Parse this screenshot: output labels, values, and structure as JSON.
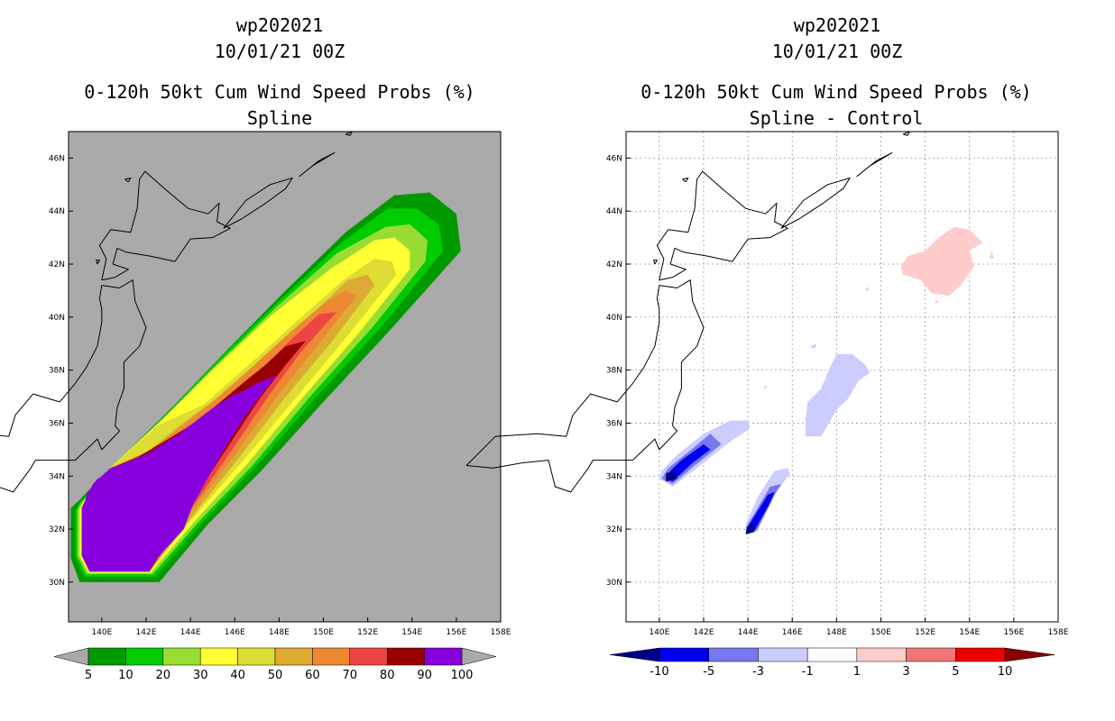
{
  "chart_data": [
    {
      "type": "heatmap",
      "title_line1": "wp202021",
      "title_line2": "10/01/21 00Z",
      "title_line3": "0-120h 50kt Cum Wind Speed Probs (%)",
      "subtitle": "Spline",
      "x_ticks": [
        "140E",
        "142E",
        "144E",
        "146E",
        "148E",
        "150E",
        "152E",
        "154E",
        "156E",
        "158E"
      ],
      "y_ticks": [
        "30N",
        "32N",
        "34N",
        "36N",
        "38N",
        "40N",
        "42N",
        "44N",
        "46N"
      ],
      "xlim": [
        138.5,
        158
      ],
      "ylim": [
        28.5,
        47
      ],
      "background": "#aaaaaa",
      "colorbar": {
        "labels": [
          "5",
          "10",
          "20",
          "30",
          "40",
          "50",
          "60",
          "70",
          "80",
          "90",
          "100"
        ],
        "colors": [
          "#009900",
          "#00cc00",
          "#99dd33",
          "#ffff33",
          "#dddd33",
          "#ddaa33",
          "#ee8833",
          "#ee4444",
          "#990000",
          "#8800dd"
        ]
      },
      "probability_bands_min_pct": [
        5,
        10,
        20,
        30,
        40,
        50,
        60,
        70,
        80,
        90
      ]
    },
    {
      "type": "heatmap",
      "title_line1": "wp202021",
      "title_line2": "10/01/21 00Z",
      "title_line3": "0-120h 50kt Cum Wind Speed Probs (%)",
      "subtitle": "Spline - Control",
      "x_ticks": [
        "140E",
        "142E",
        "144E",
        "146E",
        "148E",
        "150E",
        "152E",
        "154E",
        "156E",
        "158E"
      ],
      "y_ticks": [
        "30N",
        "32N",
        "34N",
        "36N",
        "38N",
        "40N",
        "42N",
        "44N",
        "46N"
      ],
      "xlim": [
        138.5,
        158
      ],
      "ylim": [
        28.5,
        47
      ],
      "background": "#ffffff",
      "colorbar": {
        "labels": [
          "-10",
          "-5",
          "-3",
          "-1",
          "1",
          "3",
          "5",
          "10"
        ],
        "colors": [
          "#000088",
          "#0000ee",
          "#7777ee",
          "#ccccff",
          "#ffffff",
          "#ffcccc",
          "#ee7777",
          "#ee0000",
          "#880000"
        ]
      },
      "anomaly_regions": [
        {
          "sign": "negative",
          "center_lon": 141.5,
          "center_lat": 34.8,
          "min_pct": -10
        },
        {
          "sign": "negative",
          "center_lon": 144.5,
          "center_lat": 32.6,
          "min_pct": -10
        },
        {
          "sign": "negative",
          "center_lon": 148.0,
          "center_lat": 37.0,
          "min_pct": -3
        },
        {
          "sign": "positive",
          "center_lon": 152.7,
          "center_lat": 42.0,
          "max_pct": 3
        }
      ]
    }
  ]
}
